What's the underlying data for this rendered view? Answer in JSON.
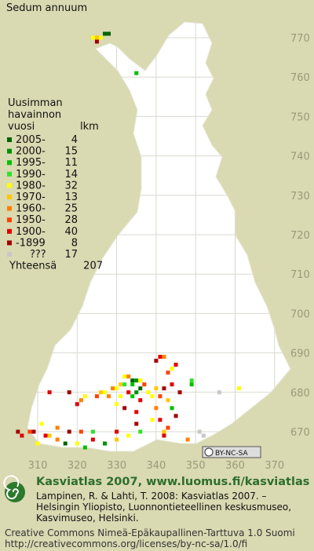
{
  "title": "Sedum annuum",
  "legend": {
    "header": [
      "Uusimman",
      "havainnon",
      "vuosi"
    ],
    "count_header": "lkm",
    "items": [
      {
        "label": "2005-",
        "count": 4,
        "color": "#006400"
      },
      {
        "label": "2000-",
        "count": 15,
        "color": "#009000"
      },
      {
        "label": "1995-",
        "count": 11,
        "color": "#00c000"
      },
      {
        "label": "1990-",
        "count": 14,
        "color": "#30e030"
      },
      {
        "label": "1980-",
        "count": 32,
        "color": "#ffff00"
      },
      {
        "label": "1970-",
        "count": 13,
        "color": "#ffc800"
      },
      {
        "label": "1960-",
        "count": 25,
        "color": "#ff8000"
      },
      {
        "label": "1950-",
        "count": 28,
        "color": "#ff4000"
      },
      {
        "label": "1900-",
        "count": 40,
        "color": "#e00000"
      },
      {
        "label": "-1899",
        "count": 8,
        "color": "#a00000"
      },
      {
        "label": "???",
        "count": 17,
        "color": "#c8c8c8"
      }
    ],
    "total_label": "Yhteensä",
    "total": 207
  },
  "grid": {
    "x_ticks": [
      310,
      320,
      330,
      340,
      350,
      360,
      370
    ],
    "y_ticks": [
      670,
      680,
      690,
      700,
      710,
      720,
      730,
      740,
      750,
      760,
      770
    ]
  },
  "records": [
    [
      327,
      771,
      0
    ],
    [
      328,
      771,
      0
    ],
    [
      326,
      770,
      4
    ],
    [
      325,
      770,
      5
    ],
    [
      324,
      770,
      4
    ],
    [
      325,
      769,
      9
    ],
    [
      335,
      761,
      2
    ],
    [
      341,
      689,
      8
    ],
    [
      342,
      689,
      6
    ],
    [
      340,
      688,
      9
    ],
    [
      344,
      686,
      4
    ],
    [
      345,
      687,
      8
    ],
    [
      343,
      685,
      7
    ],
    [
      332,
      684,
      4
    ],
    [
      333,
      684,
      6
    ],
    [
      334,
      683,
      0
    ],
    [
      335,
      683,
      1
    ],
    [
      336,
      683,
      4
    ],
    [
      331,
      682,
      5
    ],
    [
      332,
      682,
      3
    ],
    [
      334,
      682,
      2
    ],
    [
      336,
      681,
      0
    ],
    [
      337,
      682,
      7
    ],
    [
      329,
      681,
      6
    ],
    [
      330,
      681,
      4
    ],
    [
      333,
      680,
      8
    ],
    [
      335,
      680,
      1
    ],
    [
      338,
      680,
      4
    ],
    [
      340,
      681,
      5
    ],
    [
      342,
      681,
      9
    ],
    [
      344,
      682,
      8
    ],
    [
      327,
      680,
      4
    ],
    [
      326,
      680,
      5
    ],
    [
      325,
      679,
      7
    ],
    [
      328,
      679,
      6
    ],
    [
      331,
      679,
      4
    ],
    [
      334,
      679,
      2
    ],
    [
      336,
      678,
      8
    ],
    [
      339,
      679,
      4
    ],
    [
      341,
      679,
      7
    ],
    [
      343,
      678,
      5
    ],
    [
      346,
      680,
      9
    ],
    [
      349,
      683,
      3
    ],
    [
      349,
      682,
      2
    ],
    [
      356,
      680,
      10
    ],
    [
      361,
      681,
      4
    ],
    [
      322,
      679,
      4
    ],
    [
      321,
      678,
      6
    ],
    [
      318,
      680,
      9
    ],
    [
      313,
      680,
      8
    ],
    [
      320,
      677,
      8
    ],
    [
      330,
      677,
      4
    ],
    [
      332,
      676,
      9
    ],
    [
      340,
      676,
      6
    ],
    [
      344,
      676,
      2
    ],
    [
      335,
      675,
      8
    ],
    [
      339,
      673,
      4
    ],
    [
      341,
      673,
      8
    ],
    [
      345,
      674,
      9
    ],
    [
      343,
      671,
      7
    ],
    [
      342,
      670,
      5
    ],
    [
      342,
      669,
      8
    ],
    [
      351,
      670,
      10
    ],
    [
      352,
      669,
      10
    ],
    [
      348,
      668,
      6
    ],
    [
      336,
      670,
      3
    ],
    [
      333,
      669,
      4
    ],
    [
      330,
      668,
      5
    ],
    [
      327,
      667,
      1
    ],
    [
      324,
      668,
      8
    ],
    [
      322,
      666,
      2
    ],
    [
      320,
      667,
      4
    ],
    [
      317,
      667,
      0
    ],
    [
      315,
      668,
      6
    ],
    [
      312,
      669,
      8
    ],
    [
      309,
      670,
      9
    ],
    [
      308,
      670,
      7
    ],
    [
      305,
      670,
      9
    ],
    [
      306,
      669,
      8
    ],
    [
      310,
      667,
      4
    ],
    [
      313,
      669,
      5
    ],
    [
      318,
      670,
      9
    ],
    [
      321,
      670,
      7
    ],
    [
      324,
      670,
      3
    ],
    [
      315,
      671,
      6
    ],
    [
      311,
      672,
      4
    ],
    [
      330,
      670,
      8
    ],
    [
      335,
      672,
      9
    ]
  ],
  "badge": "BY-NC-SA",
  "footer": {
    "heading": "Kasviatlas 2007, www.luomus.fi/kasviatlas",
    "citation": [
      "Lampinen, R. & Lahti, T. 2008: Kasviatlas 2007. –",
      "Helsingin Yliopisto, Luonnontieteellinen keskusmuseo,",
      "Kasvimuseo, Helsinki."
    ],
    "license": [
      "Creative Commons Nimeä-Epäkaupallinen-Tarttuva 1.0 Suomi",
      "http://creativecommons.org/licenses/by-nc-sa/1.0/fi"
    ]
  }
}
